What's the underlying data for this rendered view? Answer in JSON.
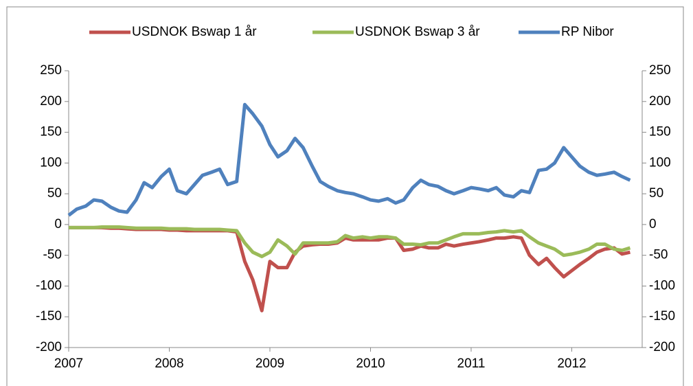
{
  "chart_data": {
    "type": "line",
    "x": [
      2007,
      2007.08,
      2007.17,
      2007.25,
      2007.33,
      2007.42,
      2007.5,
      2007.58,
      2007.67,
      2007.75,
      2007.83,
      2007.92,
      2008,
      2008.08,
      2008.17,
      2008.25,
      2008.33,
      2008.42,
      2008.5,
      2008.58,
      2008.67,
      2008.75,
      2008.83,
      2008.92,
      2009,
      2009.08,
      2009.17,
      2009.25,
      2009.33,
      2009.42,
      2009.5,
      2009.58,
      2009.67,
      2009.75,
      2009.83,
      2009.92,
      2010,
      2010.08,
      2010.17,
      2010.25,
      2010.33,
      2010.42,
      2010.5,
      2010.58,
      2010.67,
      2010.75,
      2010.83,
      2010.92,
      2011,
      2011.08,
      2011.17,
      2011.25,
      2011.33,
      2011.42,
      2011.5,
      2011.58,
      2011.67,
      2011.75,
      2011.83,
      2011.92,
      2012,
      2012.08,
      2012.17,
      2012.25,
      2012.33,
      2012.42,
      2012.5,
      2012.58
    ],
    "series": [
      {
        "name": "USDNOK Bswap 1 år",
        "color": "#c0504d",
        "values": [
          -5,
          -5,
          -5,
          -5,
          -5,
          -6,
          -6,
          -7,
          -8,
          -8,
          -8,
          -8,
          -9,
          -9,
          -10,
          -10,
          -10,
          -10,
          -10,
          -10,
          -12,
          -60,
          -90,
          -140,
          -60,
          -70,
          -70,
          -45,
          -35,
          -33,
          -32,
          -32,
          -30,
          -22,
          -25,
          -25,
          -25,
          -25,
          -22,
          -22,
          -42,
          -40,
          -35,
          -38,
          -38,
          -32,
          -35,
          -32,
          -30,
          -28,
          -25,
          -22,
          -22,
          -20,
          -22,
          -50,
          -65,
          -55,
          -70,
          -85,
          -75,
          -65,
          -55,
          -45,
          -40,
          -38,
          -48,
          -45
        ]
      },
      {
        "name": "USDNOK Bswap 3 år",
        "color": "#9bbb59",
        "values": [
          -5,
          -5,
          -5,
          -5,
          -4,
          -4,
          -4,
          -5,
          -6,
          -6,
          -6,
          -6,
          -7,
          -7,
          -7,
          -8,
          -8,
          -8,
          -8,
          -9,
          -10,
          -30,
          -45,
          -52,
          -45,
          -25,
          -35,
          -48,
          -30,
          -30,
          -30,
          -30,
          -28,
          -18,
          -22,
          -20,
          -22,
          -20,
          -20,
          -22,
          -32,
          -32,
          -33,
          -30,
          -30,
          -25,
          -20,
          -15,
          -15,
          -15,
          -13,
          -12,
          -10,
          -12,
          -10,
          -20,
          -30,
          -35,
          -40,
          -50,
          -48,
          -45,
          -40,
          -32,
          -32,
          -40,
          -42,
          -38
        ]
      },
      {
        "name": "RP Nibor",
        "color": "#4f81bd",
        "axis": "y2",
        "values": [
          15,
          25,
          30,
          40,
          38,
          28,
          22,
          20,
          40,
          68,
          60,
          78,
          90,
          55,
          50,
          65,
          80,
          85,
          90,
          65,
          70,
          195,
          180,
          160,
          130,
          110,
          120,
          140,
          125,
          95,
          70,
          62,
          55,
          52,
          50,
          45,
          40,
          38,
          42,
          35,
          40,
          60,
          72,
          65,
          62,
          55,
          50,
          55,
          60,
          58,
          55,
          60,
          48,
          45,
          55,
          52,
          88,
          90,
          100,
          125,
          110,
          95,
          85,
          80,
          82,
          85,
          78,
          72
        ]
      }
    ],
    "xlim": [
      2007,
      2012.7
    ],
    "xticks": [
      2007,
      2008,
      2009,
      2010,
      2011,
      2012
    ],
    "ylim": [
      -200,
      250
    ],
    "yticks": [
      -200,
      -150,
      -100,
      -50,
      0,
      50,
      100,
      150,
      200,
      250
    ],
    "y2lim": [
      -200,
      250
    ],
    "y2ticks": [
      -200,
      -150,
      -100,
      -50,
      0,
      50,
      100,
      150,
      200,
      250
    ],
    "legend": "top",
    "grid": false
  }
}
